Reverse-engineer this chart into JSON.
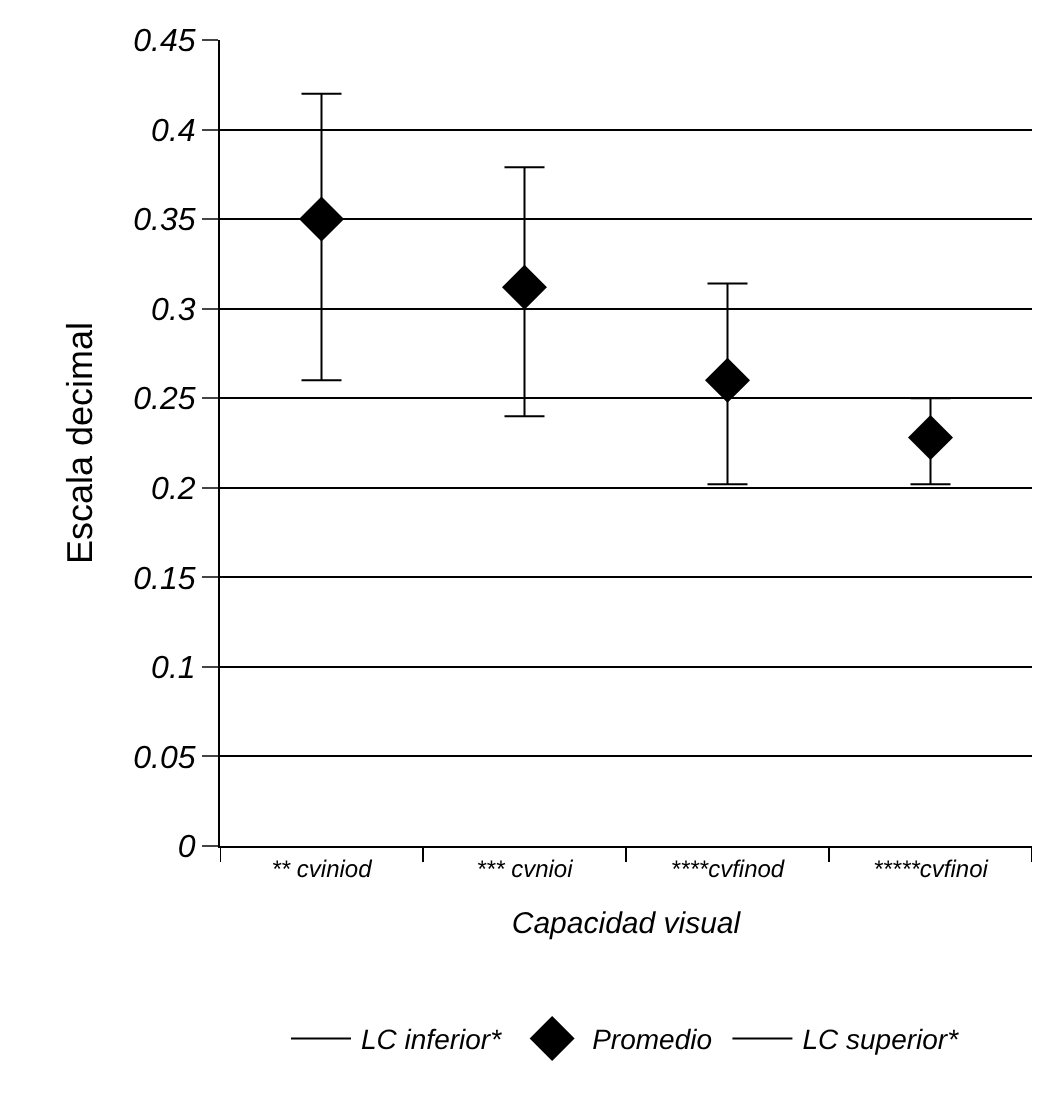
{
  "chart_data": {
    "type": "scatter",
    "xlabel": "Capacidad visual",
    "ylabel": "Escala decimal",
    "categories": [
      "** cviniod",
      "*** cvnioi",
      "****cvfinod",
      "*****cvfinoi"
    ],
    "series": [
      {
        "name": "LC inferior*",
        "color": "#000000",
        "type": "line",
        "values": [
          null,
          null,
          null,
          null
        ]
      },
      {
        "name": "Promedio",
        "color": "#000000",
        "marker": "diamond",
        "values": [
          0.35,
          0.312,
          0.26,
          0.228
        ],
        "errors": [
          [
            0.26,
            0.42
          ],
          [
            0.24,
            0.379
          ],
          [
            0.202,
            0.314
          ],
          [
            0.202,
            0.25
          ]
        ]
      },
      {
        "name": "LC superior*",
        "color": "#000000",
        "type": "line",
        "values": [
          null,
          null,
          null,
          null
        ]
      }
    ],
    "ylim": [
      0,
      0.45
    ],
    "yticks": [
      0,
      0.05,
      0.1,
      0.15,
      0.2,
      0.25,
      0.3,
      0.35,
      0.4,
      0.45
    ],
    "grid": "y",
    "legend": "bottom"
  }
}
